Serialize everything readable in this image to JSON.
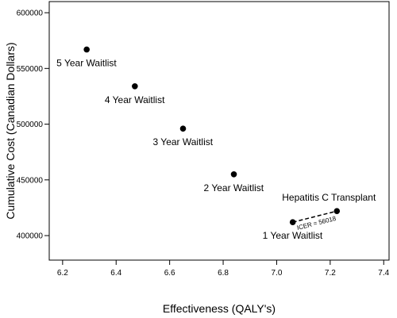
{
  "chart_data": {
    "type": "scatter",
    "title": "",
    "xlabel": "Effectiveness (QALY's)",
    "ylabel": "Cumulative Cost (Canadian Dollars)",
    "xlim": [
      6.15,
      7.42
    ],
    "ylim": [
      378000,
      610000
    ],
    "x_ticks": [
      6.2,
      6.4,
      6.6,
      6.8,
      7.0,
      7.2,
      7.4
    ],
    "x_tick_labels": [
      "6.2",
      "6.4",
      "6.6",
      "6.8",
      "7.0",
      "7.2",
      "7.4"
    ],
    "y_ticks": [
      400000,
      450000,
      500000,
      550000,
      600000
    ],
    "y_tick_labels": [
      "400000",
      "450000",
      "500000",
      "550000",
      "600000"
    ],
    "grid": false,
    "points": [
      {
        "label": "5 Year Waitlist",
        "x": 6.29,
        "y": 567000,
        "label_pos": "below-left"
      },
      {
        "label": "4 Year Waitlist",
        "x": 6.47,
        "y": 534000,
        "label_pos": "below-left"
      },
      {
        "label": "3 Year Waitlist",
        "x": 6.65,
        "y": 496000,
        "label_pos": "below-left"
      },
      {
        "label": "2 Year Waitlist",
        "x": 6.84,
        "y": 455000,
        "label_pos": "below-left"
      },
      {
        "label": "1 Year Waitlist",
        "x": 7.06,
        "y": 412000,
        "label_pos": "below-left"
      },
      {
        "label": "Hepatitis C Transplant",
        "x": 7.225,
        "y": 422000,
        "label_pos": "above"
      }
    ],
    "annotations": [
      {
        "type": "dashed-line",
        "from_point": 4,
        "to_point": 5,
        "label": "ICER = 56018"
      }
    ]
  }
}
